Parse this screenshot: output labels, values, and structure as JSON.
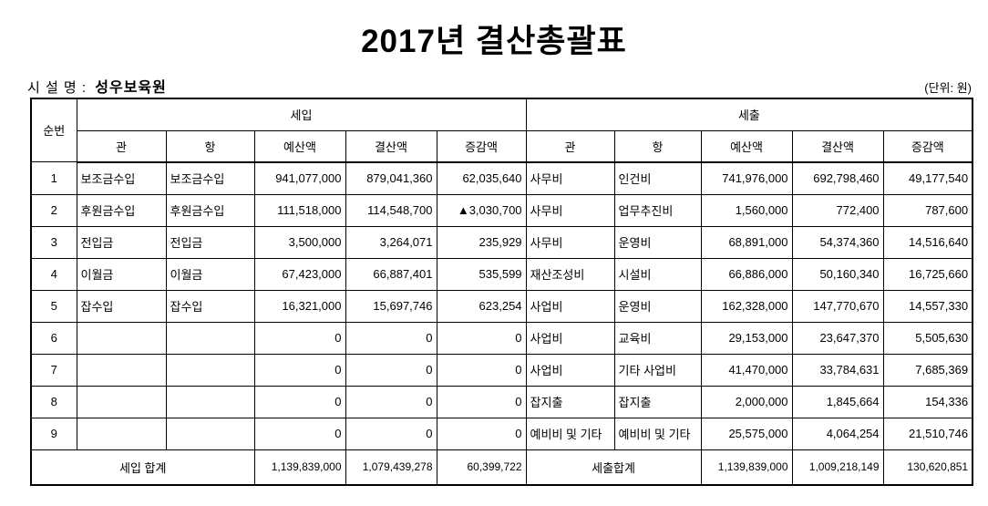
{
  "page": {
    "title": "2017년  결산총괄표",
    "facility_label": "시 설 명 :",
    "facility_name": "성우보육원",
    "unit_note": "(단위: 원)"
  },
  "table": {
    "corner_header": "순번",
    "group_headers": {
      "revenue": "세입",
      "expenditure": "세출"
    },
    "sub_headers": [
      "관",
      "항",
      "예산액",
      "결산액",
      "증감액"
    ],
    "rows": [
      {
        "no": "1",
        "in": [
          "보조금수입",
          "보조금수입",
          "941,077,000",
          "879,041,360",
          "62,035,640"
        ],
        "out": [
          "사무비",
          "인건비",
          "741,976,000",
          "692,798,460",
          "49,177,540"
        ]
      },
      {
        "no": "2",
        "in": [
          "후원금수입",
          "후원금수입",
          "111,518,000",
          "114,548,700",
          "▲3,030,700"
        ],
        "out": [
          "사무비",
          "업무추진비",
          "1,560,000",
          "772,400",
          "787,600"
        ]
      },
      {
        "no": "3",
        "in": [
          "전입금",
          "전입금",
          "3,500,000",
          "3,264,071",
          "235,929"
        ],
        "out": [
          "사무비",
          "운영비",
          "68,891,000",
          "54,374,360",
          "14,516,640"
        ]
      },
      {
        "no": "4",
        "in": [
          "이월금",
          "이월금",
          "67,423,000",
          "66,887,401",
          "535,599"
        ],
        "out": [
          "재산조성비",
          "시설비",
          "66,886,000",
          "50,160,340",
          "16,725,660"
        ]
      },
      {
        "no": "5",
        "in": [
          "잡수입",
          "잡수입",
          "16,321,000",
          "15,697,746",
          "623,254"
        ],
        "out": [
          "사업비",
          "운영비",
          "162,328,000",
          "147,770,670",
          "14,557,330"
        ]
      },
      {
        "no": "6",
        "in": [
          "",
          "",
          "0",
          "0",
          "0"
        ],
        "out": [
          "사업비",
          "교육비",
          "29,153,000",
          "23,647,370",
          "5,505,630"
        ]
      },
      {
        "no": "7",
        "in": [
          "",
          "",
          "0",
          "0",
          "0"
        ],
        "out": [
          "사업비",
          "기타 사업비",
          "41,470,000",
          "33,784,631",
          "7,685,369"
        ]
      },
      {
        "no": "8",
        "in": [
          "",
          "",
          "0",
          "0",
          "0"
        ],
        "out": [
          "잡지출",
          "잡지출",
          "2,000,000",
          "1,845,664",
          "154,336"
        ]
      },
      {
        "no": "9",
        "in": [
          "",
          "",
          "0",
          "0",
          "0"
        ],
        "out": [
          "예비비 및 기타",
          "예비비 및 기타",
          "25,575,000",
          "4,064,254",
          "21,510,746"
        ]
      }
    ],
    "footer": {
      "revenue_total_label": "세입 합계",
      "revenue_totals": [
        "1,139,839,000",
        "1,079,439,278",
        "60,399,722"
      ],
      "expenditure_total_label": "세출합계",
      "expenditure_totals": [
        "1,139,839,000",
        "1,009,218,149",
        "130,620,851"
      ]
    }
  }
}
